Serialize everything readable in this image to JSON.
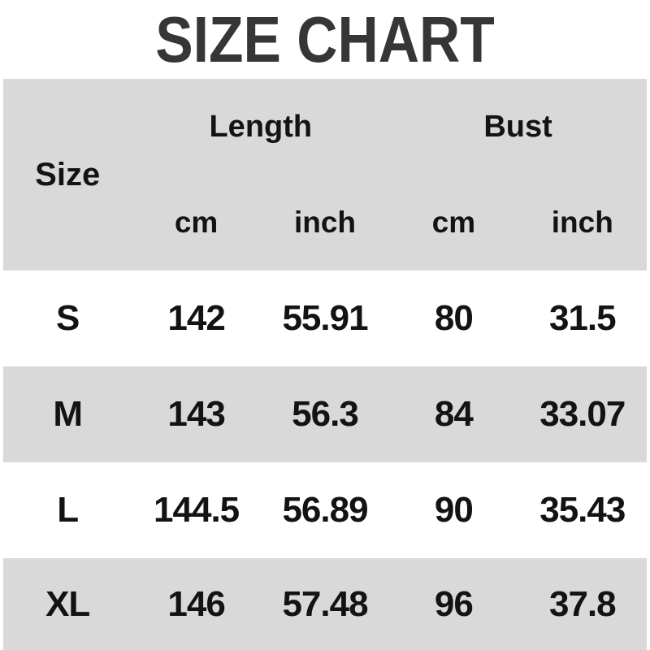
{
  "title": "SIZE CHART",
  "table": {
    "corner_label": "Size",
    "group_headers": [
      {
        "label": "Length"
      },
      {
        "label": "Bust"
      }
    ],
    "unit_headers": [
      "cm",
      "inch",
      "cm",
      "inch"
    ],
    "rows": [
      {
        "cells": [
          "S",
          "142",
          "55.91",
          "80",
          "31.5"
        ]
      },
      {
        "cells": [
          "M",
          "143",
          "56.3",
          "84",
          "33.07"
        ]
      },
      {
        "cells": [
          "L",
          "144.5",
          "56.89",
          "90",
          "35.43"
        ]
      },
      {
        "cells": [
          "XL",
          "146",
          "57.48",
          "96",
          "37.8"
        ]
      }
    ]
  },
  "colors": {
    "band_gray": "#d9d9d9",
    "text_dark": "#131313",
    "title_color": "#363636",
    "background": "#ffffff"
  },
  "chart_data": {
    "type": "table",
    "title": "SIZE CHART",
    "columns": [
      "Size",
      "Length cm",
      "Length inch",
      "Bust cm",
      "Bust inch"
    ],
    "rows": [
      [
        "S",
        142,
        55.91,
        80,
        31.5
      ],
      [
        "M",
        143,
        56.3,
        84,
        33.07
      ],
      [
        "L",
        144.5,
        56.89,
        90,
        35.43
      ],
      [
        "XL",
        146,
        57.48,
        96,
        37.8
      ]
    ]
  }
}
